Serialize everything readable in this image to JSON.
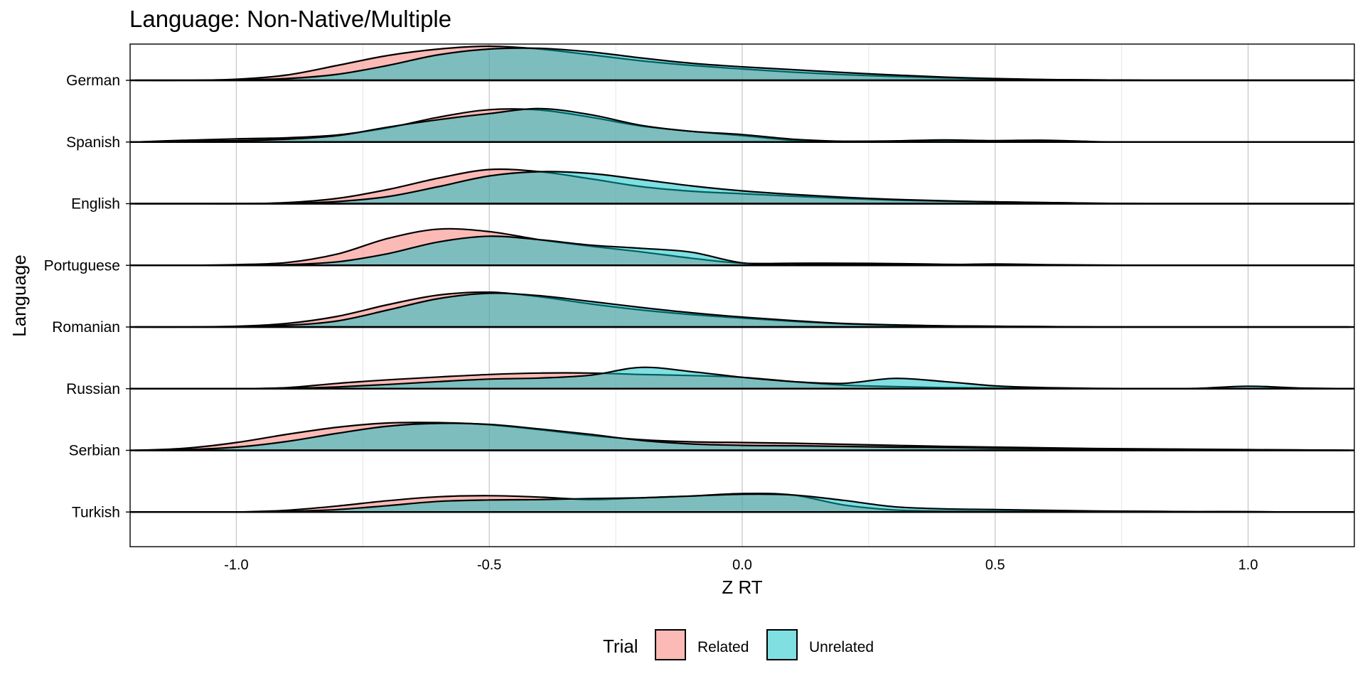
{
  "chart_data": {
    "type": "ridgeline",
    "title": "Language: Non-Native/Multiple",
    "xlabel": "Z RT",
    "ylabel": "Language",
    "xlim": [
      -1.21,
      1.21
    ],
    "x_ticks": [
      -1.0,
      -0.5,
      0.0,
      0.5,
      1.0
    ],
    "x_tick_labels": [
      "-1.0",
      "-0.5",
      "0.0",
      "0.5",
      "1.0"
    ],
    "grid": true,
    "legend": {
      "title": "Trial",
      "position": "bottom",
      "entries": [
        {
          "label": "Related",
          "color": "#F8766D"
        },
        {
          "label": "Unrelated",
          "color": "#00BFC4"
        }
      ]
    },
    "categories": [
      "German",
      "Spanish",
      "English",
      "Portuguese",
      "Romanian",
      "Russian",
      "Serbian",
      "Turkish"
    ],
    "x": [
      -1.2,
      -1.1,
      -1.0,
      -0.9,
      -0.8,
      -0.7,
      -0.6,
      -0.5,
      -0.4,
      -0.3,
      -0.2,
      -0.1,
      0.0,
      0.1,
      0.2,
      0.3,
      0.4,
      0.5,
      0.6,
      0.7,
      0.8,
      0.9,
      1.0,
      1.1,
      1.2
    ],
    "series": [
      {
        "name": "Related",
        "color": "#F8766D",
        "densities": {
          "German": [
            0.0,
            0.0,
            0.03,
            0.15,
            0.42,
            0.7,
            0.88,
            0.96,
            0.88,
            0.72,
            0.55,
            0.42,
            0.32,
            0.23,
            0.16,
            0.11,
            0.07,
            0.04,
            0.02,
            0.01,
            0.0,
            0.0,
            0.0,
            0.0,
            0.0
          ],
          "Spanish": [
            0.0,
            0.05,
            0.09,
            0.12,
            0.2,
            0.4,
            0.7,
            0.91,
            0.9,
            0.7,
            0.45,
            0.3,
            0.18,
            0.05,
            0.02,
            0.03,
            0.05,
            0.04,
            0.05,
            0.01,
            0.0,
            0.0,
            0.0,
            0.0,
            0.0
          ],
          "English": [
            0.0,
            0.0,
            0.0,
            0.03,
            0.15,
            0.4,
            0.72,
            0.96,
            0.9,
            0.7,
            0.48,
            0.35,
            0.28,
            0.21,
            0.15,
            0.1,
            0.07,
            0.05,
            0.03,
            0.01,
            0.0,
            0.0,
            0.0,
            0.0,
            0.0
          ],
          "Portuguese": [
            0.0,
            0.0,
            0.02,
            0.08,
            0.32,
            0.76,
            1.02,
            0.95,
            0.72,
            0.54,
            0.38,
            0.2,
            0.06,
            0.06,
            0.06,
            0.05,
            0.03,
            0.02,
            0.01,
            0.0,
            0.0,
            0.0,
            0.0,
            0.0,
            0.0
          ],
          "Romanian": [
            0.0,
            0.0,
            0.02,
            0.1,
            0.3,
            0.63,
            0.9,
            0.98,
            0.85,
            0.65,
            0.48,
            0.35,
            0.25,
            0.16,
            0.09,
            0.05,
            0.03,
            0.02,
            0.01,
            0.0,
            0.0,
            0.0,
            0.0,
            0.0,
            0.0
          ],
          "Russian": [
            0.0,
            0.0,
            0.0,
            0.03,
            0.15,
            0.25,
            0.33,
            0.4,
            0.44,
            0.44,
            0.4,
            0.37,
            0.32,
            0.2,
            0.1,
            0.06,
            0.03,
            0.02,
            0.01,
            0.0,
            0.0,
            0.0,
            0.0,
            0.0,
            0.0
          ],
          "Serbian": [
            0.0,
            0.06,
            0.22,
            0.45,
            0.65,
            0.77,
            0.78,
            0.72,
            0.58,
            0.42,
            0.3,
            0.24,
            0.22,
            0.2,
            0.17,
            0.14,
            0.11,
            0.09,
            0.07,
            0.05,
            0.04,
            0.03,
            0.02,
            0.01,
            0.0
          ],
          "Turkish": [
            0.0,
            0.0,
            0.0,
            0.05,
            0.17,
            0.32,
            0.43,
            0.46,
            0.42,
            0.35,
            0.4,
            0.45,
            0.52,
            0.48,
            0.2,
            0.06,
            0.03,
            0.02,
            0.02,
            0.02,
            0.02,
            0.01,
            0.01,
            0.0,
            0.0
          ]
        }
      },
      {
        "name": "Unrelated",
        "color": "#00BFC4",
        "densities": {
          "German": [
            0.0,
            0.0,
            0.01,
            0.05,
            0.17,
            0.42,
            0.72,
            0.88,
            0.9,
            0.8,
            0.63,
            0.48,
            0.38,
            0.3,
            0.22,
            0.15,
            0.09,
            0.05,
            0.02,
            0.01,
            0.0,
            0.0,
            0.0,
            0.0,
            0.0
          ],
          "Spanish": [
            0.0,
            0.02,
            0.04,
            0.08,
            0.18,
            0.42,
            0.63,
            0.8,
            0.94,
            0.77,
            0.47,
            0.3,
            0.21,
            0.08,
            0.02,
            0.03,
            0.06,
            0.03,
            0.01,
            0.0,
            0.0,
            0.0,
            0.0,
            0.0,
            0.0
          ],
          "English": [
            0.0,
            0.0,
            0.0,
            0.01,
            0.06,
            0.2,
            0.48,
            0.78,
            0.9,
            0.85,
            0.68,
            0.5,
            0.36,
            0.26,
            0.18,
            0.12,
            0.08,
            0.05,
            0.03,
            0.01,
            0.0,
            0.0,
            0.0,
            0.0,
            0.0
          ],
          "Portuguese": [
            0.0,
            0.0,
            0.0,
            0.02,
            0.1,
            0.33,
            0.66,
            0.82,
            0.72,
            0.57,
            0.48,
            0.37,
            0.07,
            0.05,
            0.04,
            0.03,
            0.02,
            0.04,
            0.02,
            0.01,
            0.0,
            0.0,
            0.0,
            0.0,
            0.0
          ],
          "Romanian": [
            0.0,
            0.0,
            0.01,
            0.05,
            0.17,
            0.48,
            0.8,
            0.95,
            0.88,
            0.72,
            0.55,
            0.4,
            0.28,
            0.18,
            0.1,
            0.06,
            0.03,
            0.02,
            0.01,
            0.0,
            0.0,
            0.0,
            0.0,
            0.0,
            0.0
          ],
          "Russian": [
            0.0,
            0.0,
            0.0,
            0.01,
            0.05,
            0.12,
            0.2,
            0.27,
            0.3,
            0.38,
            0.6,
            0.48,
            0.32,
            0.2,
            0.15,
            0.29,
            0.2,
            0.08,
            0.03,
            0.01,
            0.0,
            0.01,
            0.07,
            0.02,
            0.0
          ],
          "Serbian": [
            0.0,
            0.02,
            0.09,
            0.25,
            0.48,
            0.68,
            0.76,
            0.73,
            0.6,
            0.45,
            0.28,
            0.18,
            0.14,
            0.13,
            0.11,
            0.09,
            0.08,
            0.06,
            0.05,
            0.04,
            0.03,
            0.02,
            0.01,
            0.01,
            0.0
          ],
          "Turkish": [
            0.0,
            0.0,
            0.0,
            0.02,
            0.07,
            0.18,
            0.3,
            0.34,
            0.35,
            0.38,
            0.4,
            0.45,
            0.5,
            0.48,
            0.33,
            0.15,
            0.09,
            0.07,
            0.05,
            0.03,
            0.02,
            0.01,
            0.01,
            0.0,
            0.0
          ]
        }
      }
    ]
  }
}
